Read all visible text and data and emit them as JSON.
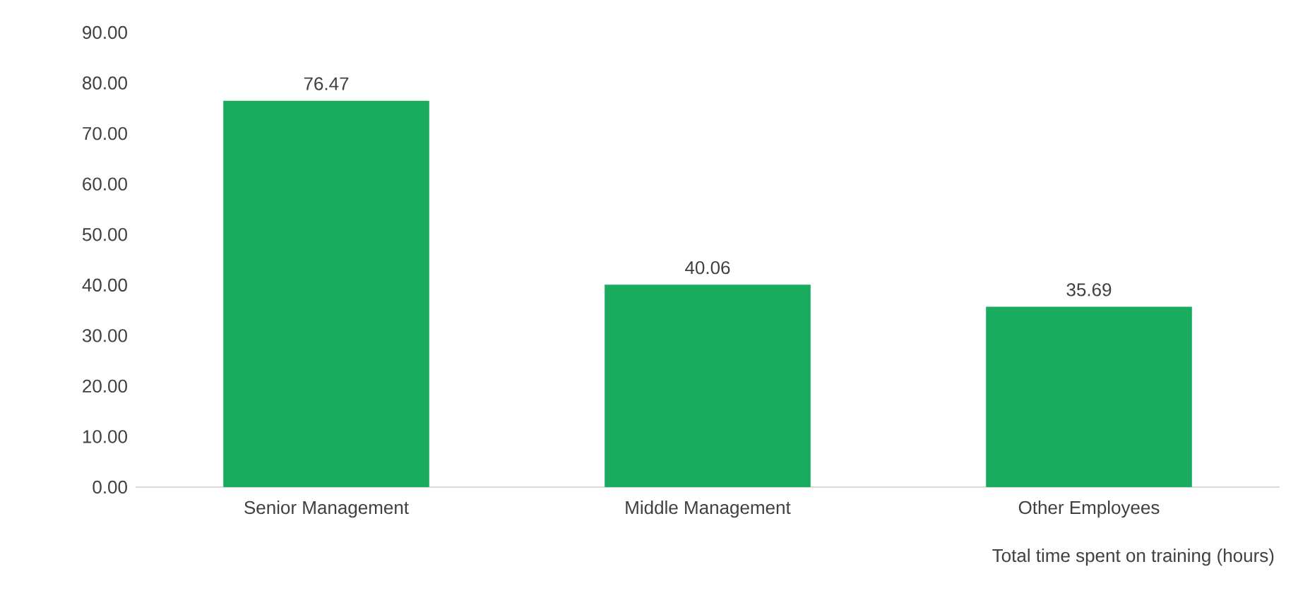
{
  "chart_data": {
    "type": "bar",
    "xlabel": "Total time spent on training (hours)",
    "categories": [
      "Senior Management",
      "Middle Management",
      "Other Employees"
    ],
    "values": [
      76.47,
      40.06,
      35.69
    ],
    "color": "#19ac5f",
    "data_labels": true,
    "ylim": [
      0,
      90
    ],
    "yticks": [
      {
        "value": 0,
        "label": "0.00"
      },
      {
        "value": 10,
        "label": "10.00"
      },
      {
        "value": 20,
        "label": "20.00"
      },
      {
        "value": 30,
        "label": "30.00"
      },
      {
        "value": 40,
        "label": "40.00"
      },
      {
        "value": 50,
        "label": "50.00"
      },
      {
        "value": 60,
        "label": "60.00"
      },
      {
        "value": 70,
        "label": "70.00"
      },
      {
        "value": 80,
        "label": "80.00"
      },
      {
        "value": 90,
        "label": "90.00"
      }
    ]
  }
}
